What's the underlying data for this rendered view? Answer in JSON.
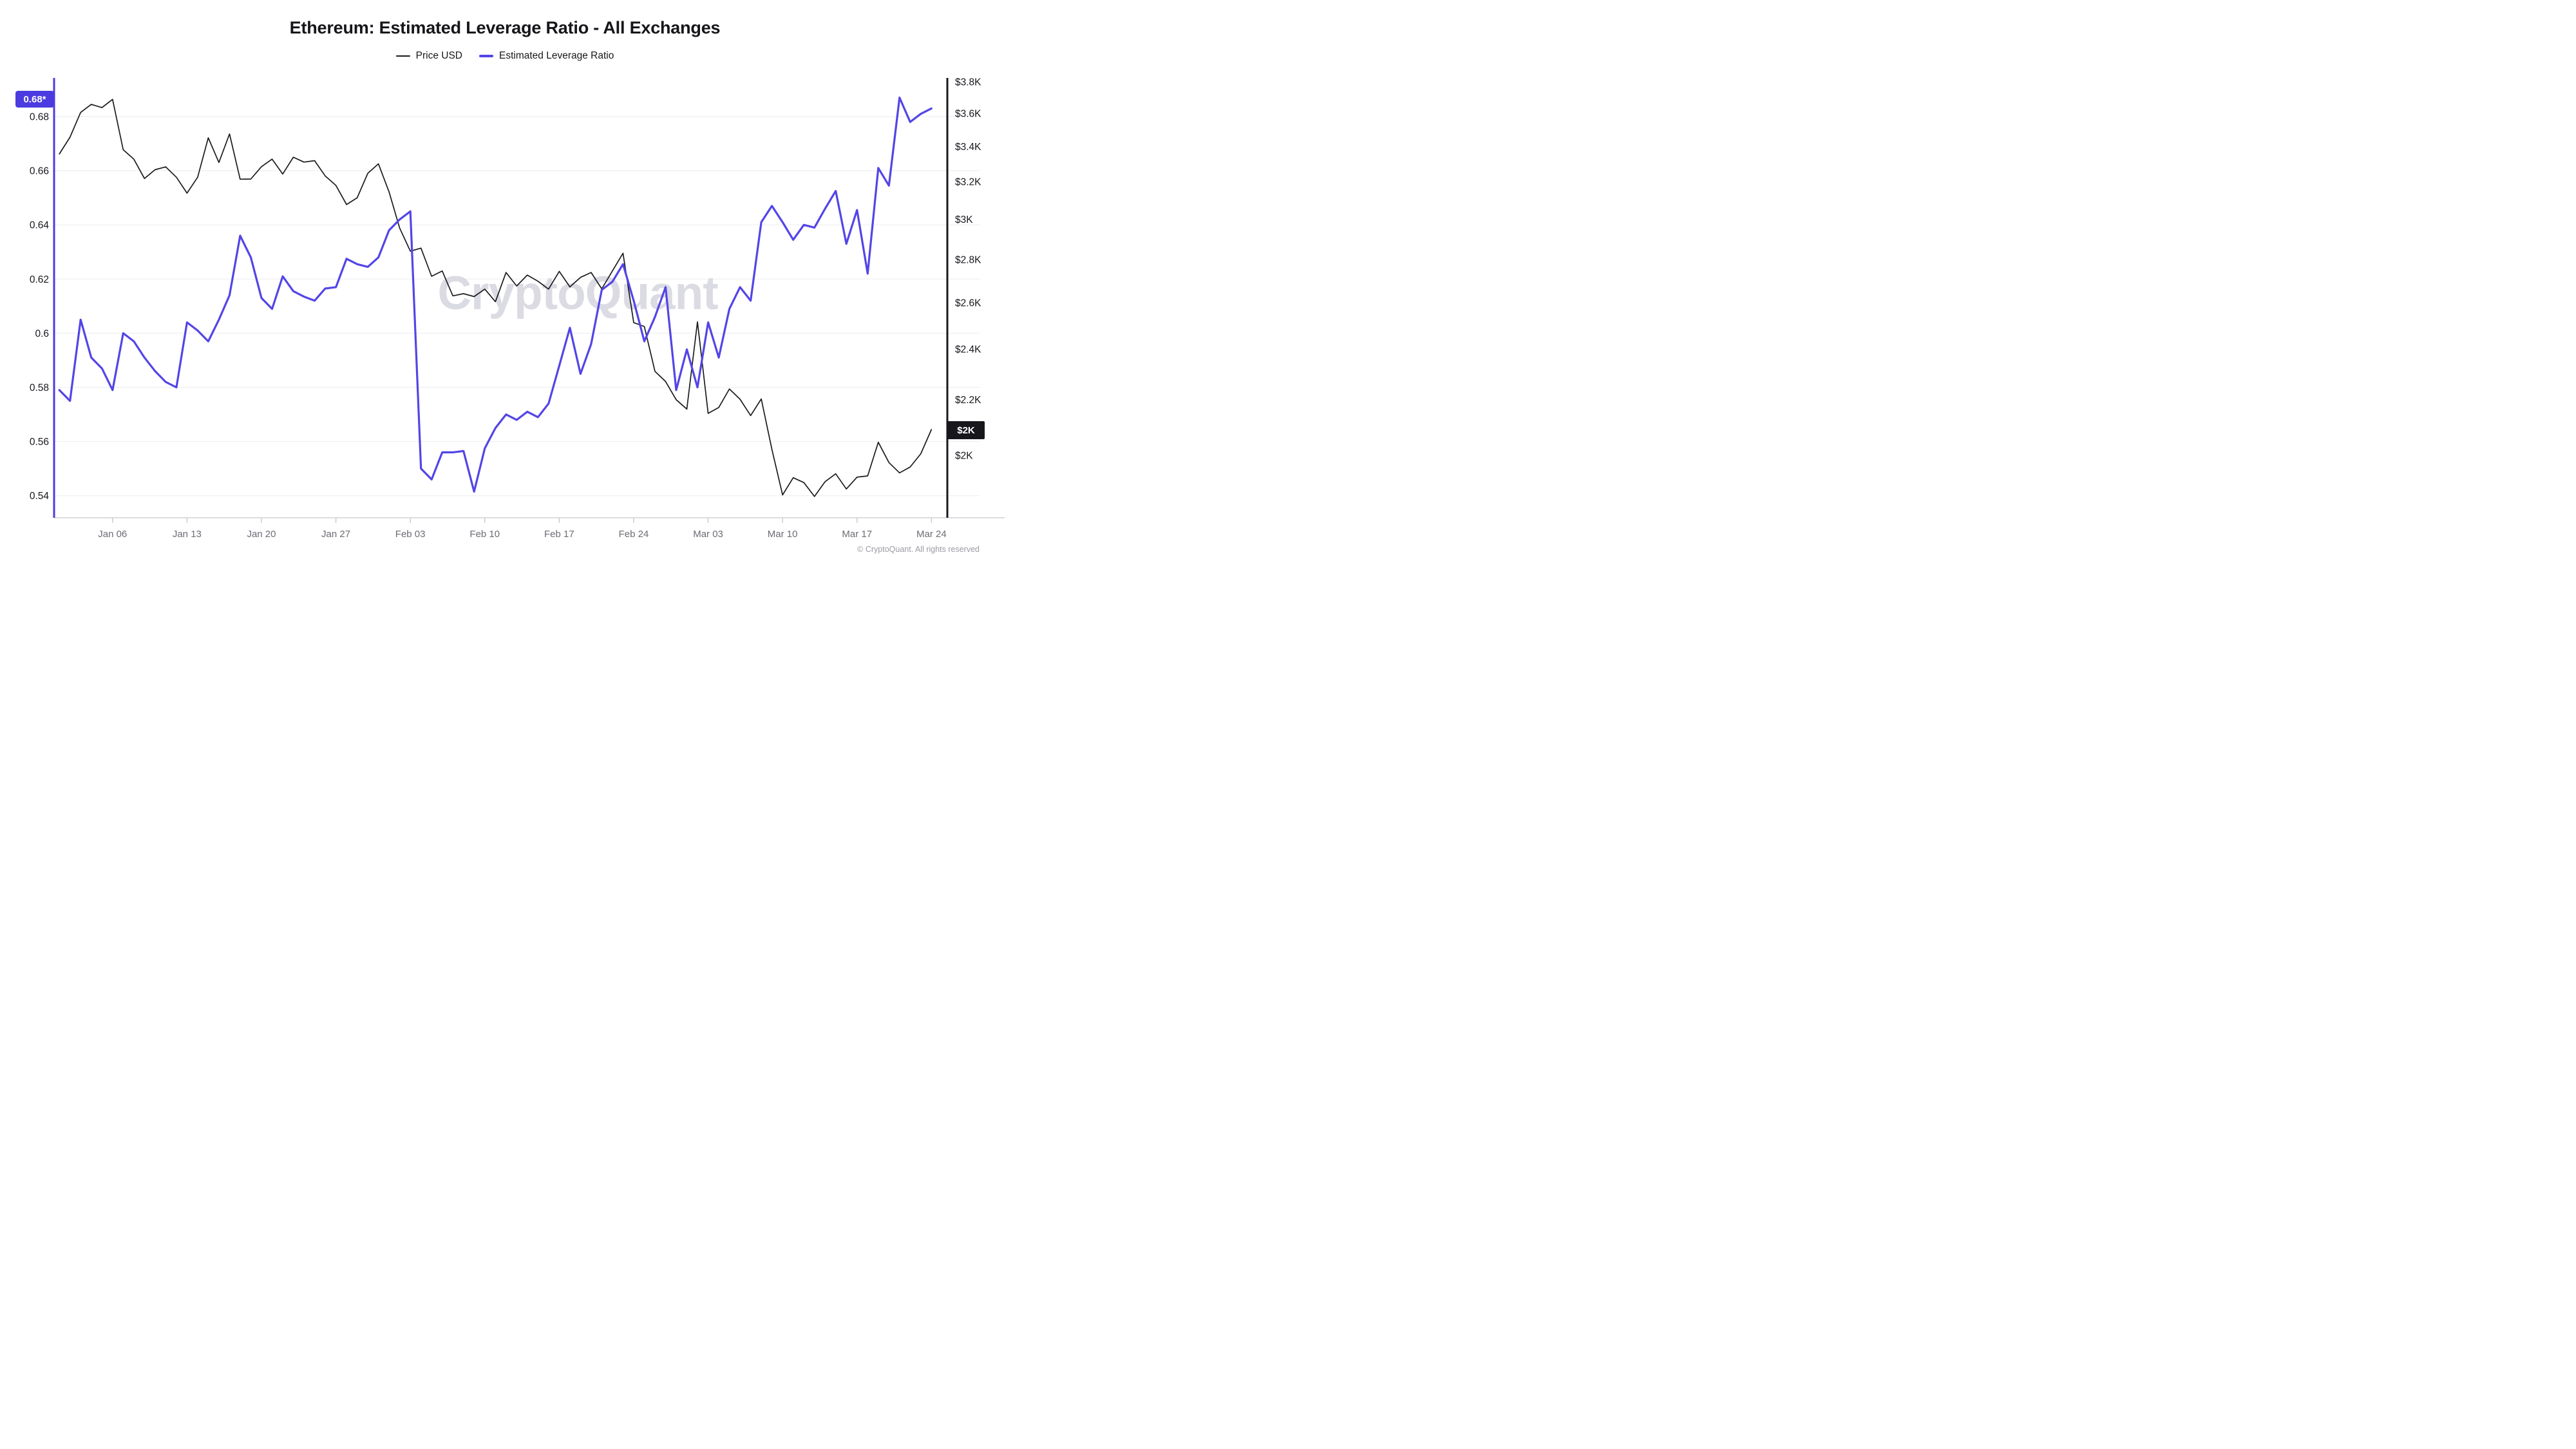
{
  "title": "Ethereum: Estimated Leverage Ratio - All Exchanges",
  "legend": [
    {
      "label": "Price USD",
      "color": "#1b1b20"
    },
    {
      "label": "Estimated Leverage Ratio",
      "color": "#5345e6"
    }
  ],
  "badges": {
    "left_current_value": "0.68*",
    "left_badge_color": "#4c3be0",
    "right_current_value": "$2K",
    "right_badge_color": "#17171c"
  },
  "watermark": "CryptoQuant",
  "copyright": "© CryptoQuant. All rights reserved",
  "chart_data": {
    "type": "line",
    "title": "Ethereum: Estimated Leverage Ratio - All Exchanges",
    "grid": "horizontal",
    "legend_position": "top",
    "x_tick_labels": [
      "Jan 06",
      "Jan 13",
      "Jan 20",
      "Jan 27",
      "Feb 03",
      "Feb 10",
      "Feb 17",
      "Feb 24",
      "Mar 03",
      "Mar 10",
      "Mar 17",
      "Mar 24"
    ],
    "x_tick_day_index": [
      5,
      12,
      19,
      26,
      33,
      40,
      47,
      54,
      61,
      68,
      75,
      82
    ],
    "left_axis": {
      "title": "Estimated Leverage Ratio",
      "scale": "linear",
      "tick_labels": [
        "0.68",
        "0.66",
        "0.64",
        "0.62",
        "0.6",
        "0.58",
        "0.56",
        "0.54"
      ],
      "tick_values": [
        0.68,
        0.66,
        0.64,
        0.62,
        0.6,
        0.58,
        0.56,
        0.54
      ],
      "axis_color": "#4c3be0"
    },
    "right_axis": {
      "title": "Price USD",
      "scale": "log",
      "tick_labels": [
        "$3.8K",
        "$3.6K",
        "$3.4K",
        "$3.2K",
        "$3K",
        "$2.8K",
        "$2.6K",
        "$2.4K",
        "$2.2K",
        "$2K"
      ],
      "tick_values": [
        3800,
        3600,
        3400,
        3200,
        3000,
        2800,
        2600,
        2400,
        2200,
        2000
      ],
      "axis_color": "#17171c"
    },
    "dates": [
      "Jan 01",
      "Jan 02",
      "Jan 03",
      "Jan 04",
      "Jan 05",
      "Jan 06",
      "Jan 07",
      "Jan 08",
      "Jan 09",
      "Jan 10",
      "Jan 11",
      "Jan 12",
      "Jan 13",
      "Jan 14",
      "Jan 15",
      "Jan 16",
      "Jan 17",
      "Jan 18",
      "Jan 19",
      "Jan 20",
      "Jan 21",
      "Jan 22",
      "Jan 23",
      "Jan 24",
      "Jan 25",
      "Jan 26",
      "Jan 27",
      "Jan 28",
      "Jan 29",
      "Jan 30",
      "Jan 31",
      "Feb 01",
      "Feb 02",
      "Feb 03",
      "Feb 04",
      "Feb 05",
      "Feb 06",
      "Feb 07",
      "Feb 08",
      "Feb 09",
      "Feb 10",
      "Feb 11",
      "Feb 12",
      "Feb 13",
      "Feb 14",
      "Feb 15",
      "Feb 16",
      "Feb 17",
      "Feb 18",
      "Feb 19",
      "Feb 20",
      "Feb 21",
      "Feb 22",
      "Feb 23",
      "Feb 24",
      "Feb 25",
      "Feb 26",
      "Feb 27",
      "Feb 28",
      "Mar 01",
      "Mar 02",
      "Mar 03",
      "Mar 04",
      "Mar 05",
      "Mar 06",
      "Mar 07",
      "Mar 08",
      "Mar 09",
      "Mar 10",
      "Mar 11",
      "Mar 12",
      "Mar 13",
      "Mar 14",
      "Mar 15",
      "Mar 16",
      "Mar 17",
      "Mar 18",
      "Mar 19",
      "Mar 20",
      "Mar 21",
      "Mar 22",
      "Mar 23",
      "Mar 24"
    ],
    "series": [
      {
        "name": "Price USD",
        "axis": "right",
        "color": "#1b1b20",
        "stroke_width": 1.7,
        "values": [
          3357,
          3455,
          3605,
          3655,
          3635,
          3687,
          3381,
          3327,
          3218,
          3267,
          3283,
          3225,
          3138,
          3225,
          3451,
          3308,
          3474,
          3214,
          3215,
          3284,
          3327,
          3243,
          3338,
          3310,
          3318,
          3232,
          3180,
          3077,
          3113,
          3247,
          3300,
          3145,
          2955,
          2840,
          2855,
          2720,
          2745,
          2630,
          2640,
          2627,
          2661,
          2604,
          2738,
          2675,
          2726,
          2697,
          2661,
          2743,
          2671,
          2715,
          2738,
          2662,
          2745,
          2830,
          2512,
          2495,
          2310,
          2270,
          2200,
          2165,
          2515,
          2149,
          2171,
          2241,
          2202,
          2141,
          2203,
          2020,
          1868,
          1924,
          1908,
          1863,
          1911,
          1937,
          1887,
          1926,
          1930,
          2045,
          1975,
          1940,
          1960,
          2005,
          2090
        ]
      },
      {
        "name": "Estimated Leverage Ratio",
        "axis": "left",
        "color": "#5345e6",
        "stroke_width": 3.2,
        "values": [
          0.579,
          0.575,
          0.605,
          0.591,
          0.587,
          0.579,
          0.6,
          0.597,
          0.591,
          0.586,
          0.582,
          0.58,
          0.604,
          0.601,
          0.597,
          0.605,
          0.614,
          0.636,
          0.628,
          0.613,
          0.609,
          0.621,
          0.6155,
          0.6135,
          0.612,
          0.6165,
          0.617,
          0.6275,
          0.6255,
          0.6245,
          0.628,
          0.638,
          0.642,
          0.645,
          0.55,
          0.546,
          0.556,
          0.556,
          0.5565,
          0.5415,
          0.5575,
          0.565,
          0.57,
          0.568,
          0.571,
          0.569,
          0.574,
          0.588,
          0.602,
          0.585,
          0.596,
          0.616,
          0.619,
          0.6255,
          0.612,
          0.597,
          0.606,
          0.617,
          0.579,
          0.594,
          0.58,
          0.604,
          0.591,
          0.609,
          0.617,
          0.612,
          0.641,
          0.647,
          0.641,
          0.6345,
          0.64,
          0.639,
          0.646,
          0.6525,
          0.633,
          0.6455,
          0.622,
          0.661,
          0.6545,
          0.687,
          0.678,
          0.681,
          0.683
        ]
      }
    ]
  },
  "style": {
    "grid_color": "#f1f1f4",
    "x_axis_line_color": "#dcdce1",
    "x_tick_color": "#c9c9cf",
    "x_label_color": "#6c6c75",
    "y_label_color": "#17171d",
    "watermark_color": "#dbdbe3"
  }
}
